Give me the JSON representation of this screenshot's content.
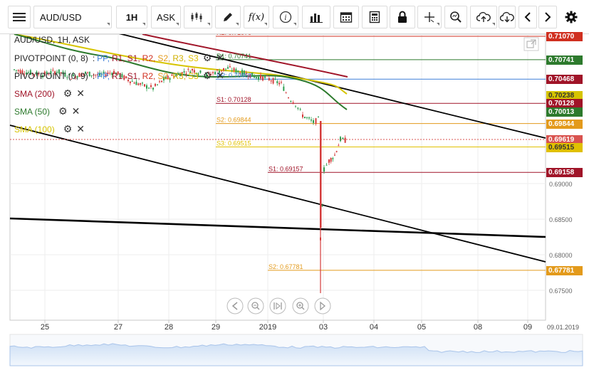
{
  "toolbar": {
    "symbol": "AUD/USD",
    "timeframe": "1H",
    "price_side": "ASK",
    "icons": [
      "menu-icon",
      "candlestick-icon",
      "pencil-icon",
      "function-icon",
      "info-icon",
      "bar-chart-icon",
      "calendar-icon",
      "calculator-icon",
      "lock-icon",
      "crosshair-icon",
      "zoom-icon",
      "upload-icon",
      "download-icon",
      "chevron-left-icon",
      "chevron-right-icon",
      "gear-icon"
    ],
    "function_label": "f(x)"
  },
  "legend": {
    "title": "AUD/USD, 1H, ASK",
    "pivot1": {
      "name": "PIVOTPOINT (0, 8)",
      "sep": ":",
      "items": [
        "PP,",
        "R1,",
        "S1,",
        "R2,",
        "S2,",
        "R3,",
        "S3"
      ]
    },
    "pivot2": {
      "name": "PIVOTPOINT (0, 9)",
      "sep": ":",
      "items": [
        "PP,",
        "R1,",
        "S1,",
        "R2,",
        "S2,",
        "R3,",
        "S3"
      ]
    },
    "sma200": "SMA (200)",
    "sma50": "SMA (50)",
    "sma100": "SMA (100)"
  },
  "colors": {
    "pp": "#3b7dd8",
    "r1": "#a01428",
    "s1": "#a01428",
    "r2": "#d03020",
    "s2": "#e39a1b",
    "r3": "#d0b000",
    "s3": "#e0c000",
    "sma200": "#a01428",
    "sma50": "#2d7a2d",
    "sma100": "#d6c400",
    "current": "#d9534f"
  },
  "chart_data": {
    "type": "candlestick",
    "symbol": "AUD/USD",
    "interval": "1H",
    "current_price": 0.69619,
    "current_time_label": "09.01.2019",
    "y_ticks": [
      0.69,
      0.685,
      0.68,
      0.675
    ],
    "y_tick_labels": [
      "0.69000",
      "0.68500",
      "0.68000",
      "0.67500"
    ],
    "x_tick_labels": [
      "25",
      "27",
      "28",
      "29",
      "2019",
      "03",
      "04",
      "05",
      "08",
      "09"
    ],
    "level_lines": [
      {
        "label": "R2: 0.71070",
        "price": 0.7107,
        "color": "#d03020"
      },
      {
        "label": "R1: 0.70741",
        "price": 0.70741,
        "color": "#2d7a2d"
      },
      {
        "label": "PP: 0.70468",
        "price": 0.70468,
        "color": "#3b7dd8"
      },
      {
        "label": "S1: 0.70128",
        "price": 0.70128,
        "color": "#a01428"
      },
      {
        "label": "S2: 0.69844",
        "price": 0.69844,
        "color": "#e39a1b"
      },
      {
        "label": "S3: 0.69515",
        "price": 0.69515,
        "color": "#e0c000"
      },
      {
        "label": "S1: 0.69157",
        "price": 0.69157,
        "color": "#a01428"
      },
      {
        "label": "S2: 0.67781",
        "price": 0.67781,
        "color": "#e39a1b"
      }
    ],
    "price_tags": [
      {
        "text": "0.71070",
        "price": 0.7107,
        "color": "#d03020"
      },
      {
        "text": "0.70741",
        "price": 0.70741,
        "color": "#2d7a2d"
      },
      {
        "text": "0.70468",
        "price": 0.70468,
        "color": "#a01428"
      },
      {
        "text": "0.70238",
        "price": 0.70238,
        "color": "#d6c400"
      },
      {
        "text": "0.70128",
        "price": 0.70128,
        "color": "#a01428"
      },
      {
        "text": "0.70013",
        "price": 0.70013,
        "color": "#2d7a2d"
      },
      {
        "text": "0.69844",
        "price": 0.69844,
        "color": "#e39a1b"
      },
      {
        "text": "0.69619",
        "price": 0.69619,
        "color": "#d9534f"
      },
      {
        "text": "0.69515",
        "price": 0.69515,
        "color": "#e0c000"
      },
      {
        "text": "0.69158",
        "price": 0.69158,
        "color": "#a01428"
      },
      {
        "text": "0.67781",
        "price": 0.67781,
        "color": "#e39a1b"
      }
    ],
    "sma_values": {
      "sma200": 0.70468,
      "sma100": 0.70238,
      "sma50": 0.70013
    }
  }
}
